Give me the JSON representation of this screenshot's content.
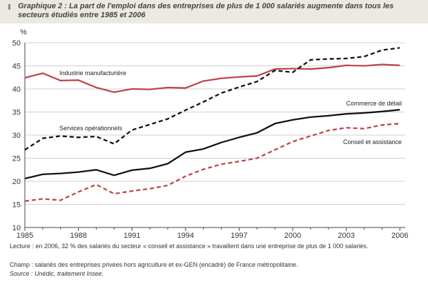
{
  "figure": {
    "title": "Graphique 2 : La part de l'emploi dans des entreprises de plus de 1 000 salariés augmente dans tous les secteurs étudiés entre 1985 et 2006",
    "lecture": "Lecture : en 2006, 32 % des salariés du secteur « conseil et assistance » travaillent dans une entreprise de plus de 1 000 salariés.",
    "champ": "Champ : salariés des entreprises privées hors agriculture et ex-GEN (encadré) de France métropolitaine.",
    "source": "Source : Unédic, traitement Insee."
  },
  "chart_data": {
    "type": "line",
    "title": "",
    "ylabel": "%",
    "xlabel": "",
    "x": [
      1985,
      1986,
      1987,
      1988,
      1989,
      1990,
      1991,
      1992,
      1993,
      1994,
      1995,
      1996,
      1997,
      1998,
      1999,
      2000,
      2001,
      2002,
      2003,
      2004,
      2005,
      2006
    ],
    "x_ticks": [
      1985,
      1988,
      1991,
      1994,
      1997,
      2000,
      2003,
      2006
    ],
    "y_ticks": [
      10,
      15,
      20,
      25,
      30,
      35,
      40,
      45,
      50
    ],
    "xlim": [
      1985,
      2006.3
    ],
    "ylim": [
      10,
      50
    ],
    "grid": "horizontal",
    "legend": "inline labels",
    "series": [
      {
        "name": "Industrie manufacturière",
        "color": "#c0444a",
        "dash": "solid",
        "values": [
          42.4,
          43.4,
          41.8,
          41.9,
          40.3,
          39.3,
          40.0,
          39.9,
          40.3,
          40.2,
          41.7,
          42.3,
          42.6,
          42.8,
          44.3,
          44.4,
          44.3,
          44.6,
          45.1,
          45.0,
          45.3,
          45.1
        ]
      },
      {
        "name": "Services opérationnels",
        "color": "#111111",
        "dash": "dashed",
        "values": [
          26.8,
          29.3,
          29.8,
          29.5,
          29.7,
          28.1,
          31.1,
          32.3,
          33.5,
          35.4,
          37.2,
          39.1,
          40.4,
          41.6,
          44.0,
          43.6,
          46.3,
          46.5,
          46.6,
          47.0,
          48.4,
          48.9
        ]
      },
      {
        "name": "Commerce de détail",
        "color": "#111111",
        "dash": "solid",
        "values": [
          20.6,
          21.5,
          21.7,
          22.0,
          22.5,
          21.3,
          22.4,
          22.8,
          23.8,
          26.3,
          27.0,
          28.4,
          29.5,
          30.5,
          32.5,
          33.3,
          33.9,
          34.2,
          34.6,
          34.8,
          35.1,
          35.5
        ]
      },
      {
        "name": "Conseil et assistance",
        "color": "#c0444a",
        "dash": "dashed",
        "values": [
          15.7,
          16.2,
          15.9,
          17.7,
          19.3,
          17.3,
          17.9,
          18.4,
          19.1,
          21.1,
          22.6,
          23.7,
          24.3,
          25.0,
          26.8,
          28.6,
          29.8,
          31.0,
          31.6,
          31.4,
          32.2,
          32.5
        ]
      }
    ]
  }
}
